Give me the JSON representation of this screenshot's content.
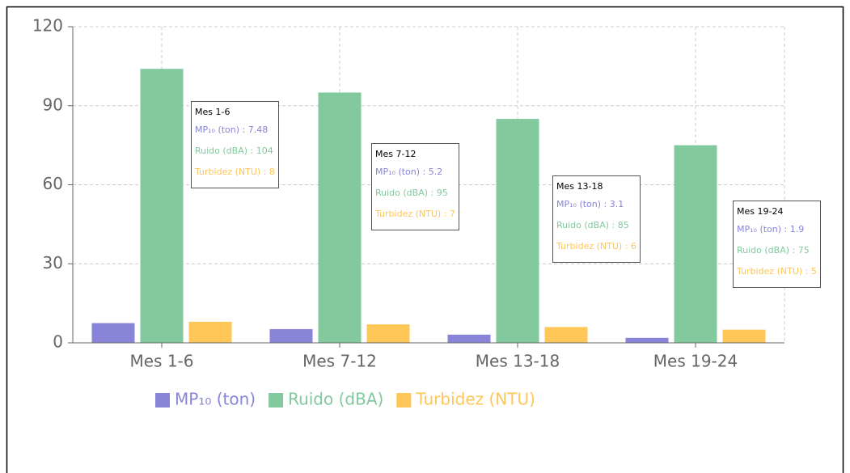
{
  "chart_data": {
    "type": "bar",
    "categories": [
      "Mes 1-6",
      "Mes 7-12",
      "Mes 13-18",
      "Mes 19-24"
    ],
    "series": [
      {
        "name": "MP₁₀ (ton)",
        "color": "#8884d8",
        "values": [
          7.48,
          5.2,
          3.1,
          1.9
        ]
      },
      {
        "name": "Ruido (dBA)",
        "color": "#82ca9d",
        "values": [
          104,
          95,
          85,
          75
        ]
      },
      {
        "name": "Turbidez (NTU)",
        "color": "#ffc658",
        "values": [
          8,
          7,
          6,
          5
        ]
      }
    ],
    "ylim": [
      0,
      120
    ],
    "yticks": [
      0,
      30,
      60,
      90,
      120
    ],
    "grid": true,
    "legend": "bottom"
  }
}
